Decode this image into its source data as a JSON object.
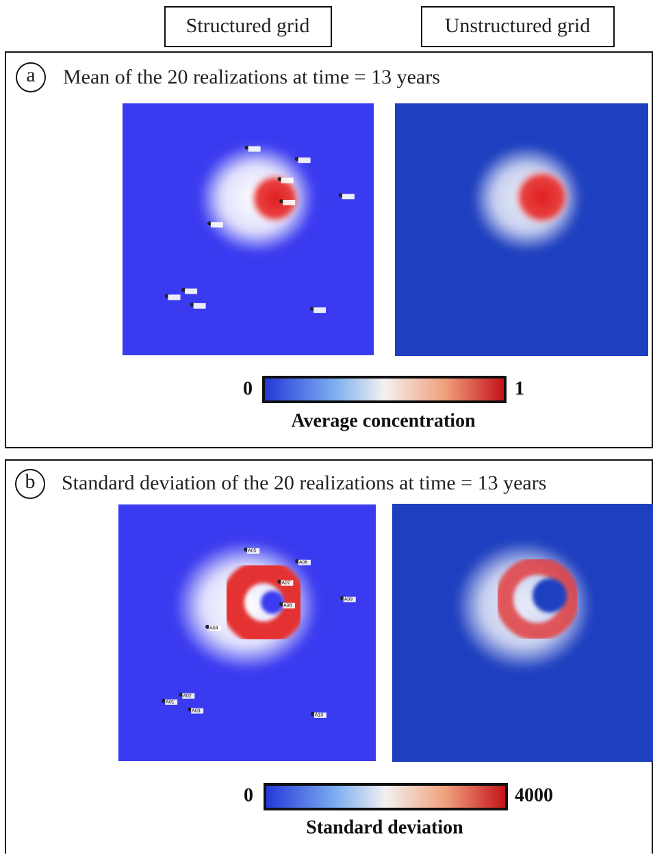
{
  "header": {
    "structured": "Structured grid",
    "unstructured": "Unstructured grid"
  },
  "panels": [
    {
      "letter": "a",
      "title": "Mean of the 20 realizations at time = 13 years",
      "colorbar": {
        "min": 0,
        "max": 1,
        "label": "Average concentration"
      }
    },
    {
      "letter": "b",
      "title": "Standard deviation of the 20 realizations at time = 13 years",
      "colorbar": {
        "min": 0,
        "max": 4000,
        "label": "Standard deviation"
      }
    }
  ],
  "wells": [
    {
      "label": "A01"
    },
    {
      "label": "A02"
    },
    {
      "label": "A03"
    },
    {
      "label": "A04"
    },
    {
      "label": "A05"
    },
    {
      "label": "A06"
    },
    {
      "label": "A07"
    },
    {
      "label": "A08"
    },
    {
      "label": "A09"
    },
    {
      "label": "A10"
    }
  ]
}
